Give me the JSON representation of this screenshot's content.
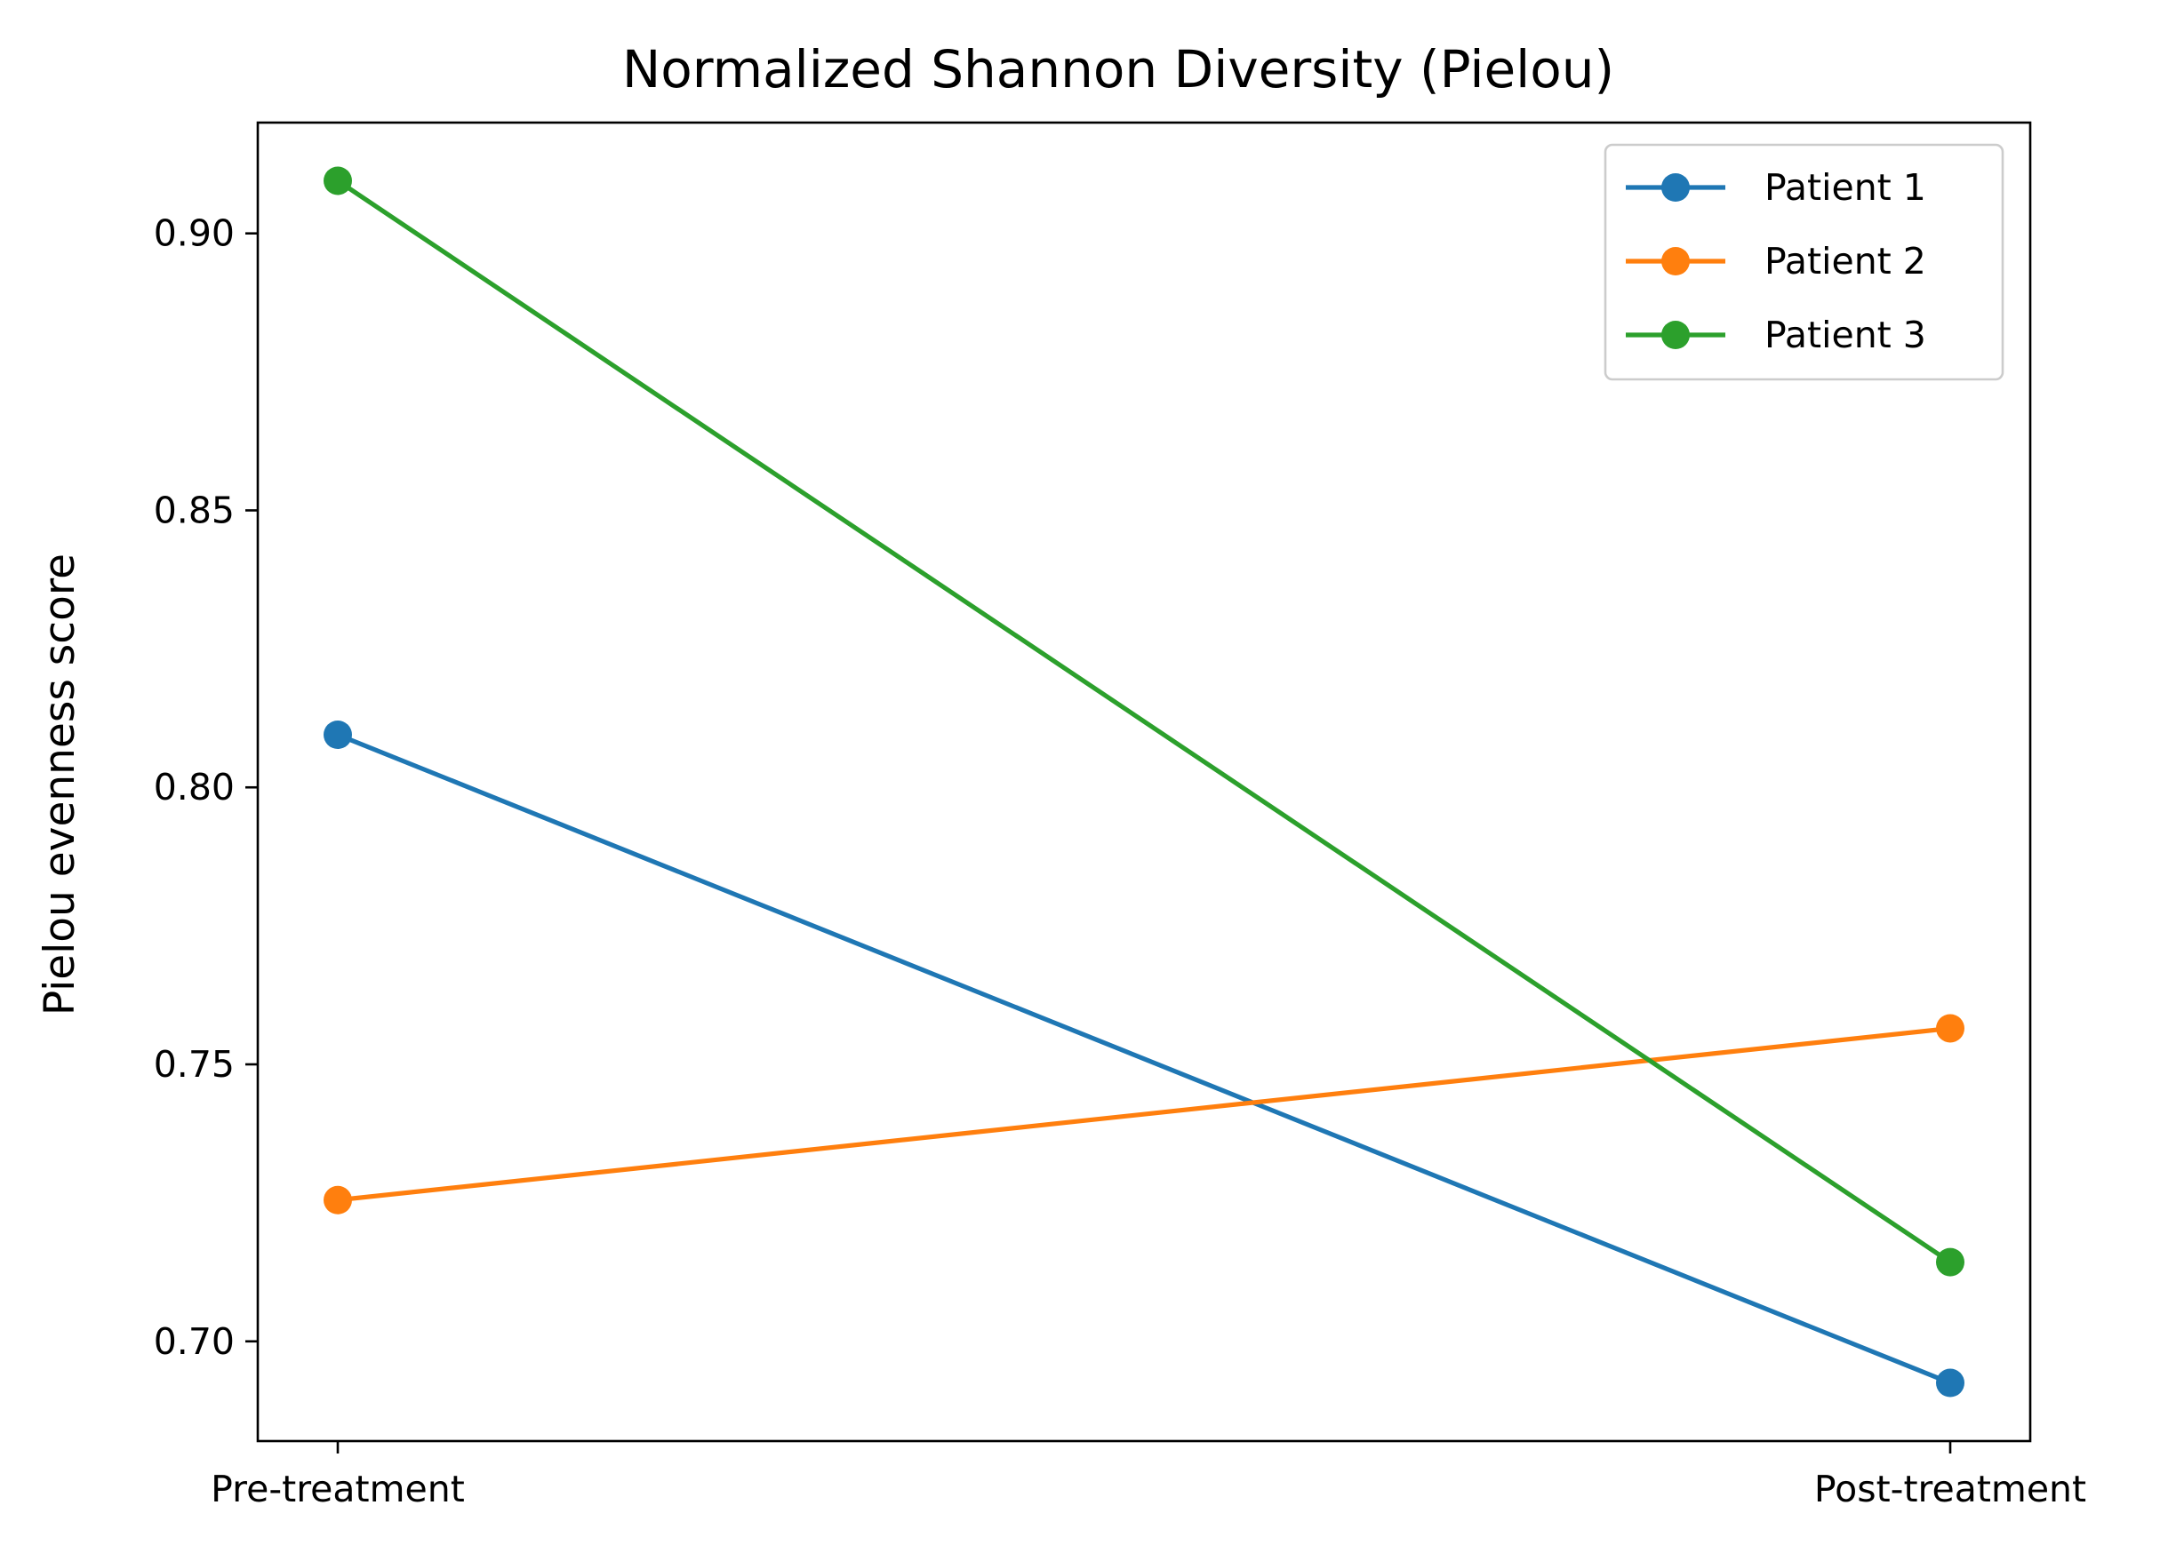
{
  "chart_data": {
    "type": "line",
    "title": "Normalized Shannon Diversity (Pielou)",
    "xlabel": "",
    "ylabel": "Pielou evenness score",
    "categories": [
      "Pre-treatment",
      "Post-treatment"
    ],
    "ylim": [
      0.682,
      0.92
    ],
    "yticks": [
      0.7,
      0.75,
      0.8,
      0.85,
      0.9
    ],
    "ytick_labels": [
      "0.70",
      "0.75",
      "0.80",
      "0.85",
      "0.90"
    ],
    "grid": false,
    "legend_position": "top-right",
    "series": [
      {
        "name": "Patient 1",
        "color": "#1f77b4",
        "values": [
          0.8095,
          0.6925
        ]
      },
      {
        "name": "Patient 2",
        "color": "#ff7f0e",
        "values": [
          0.7255,
          0.7565
        ]
      },
      {
        "name": "Patient 3",
        "color": "#2ca02c",
        "values": [
          0.9095,
          0.7143
        ]
      }
    ]
  }
}
